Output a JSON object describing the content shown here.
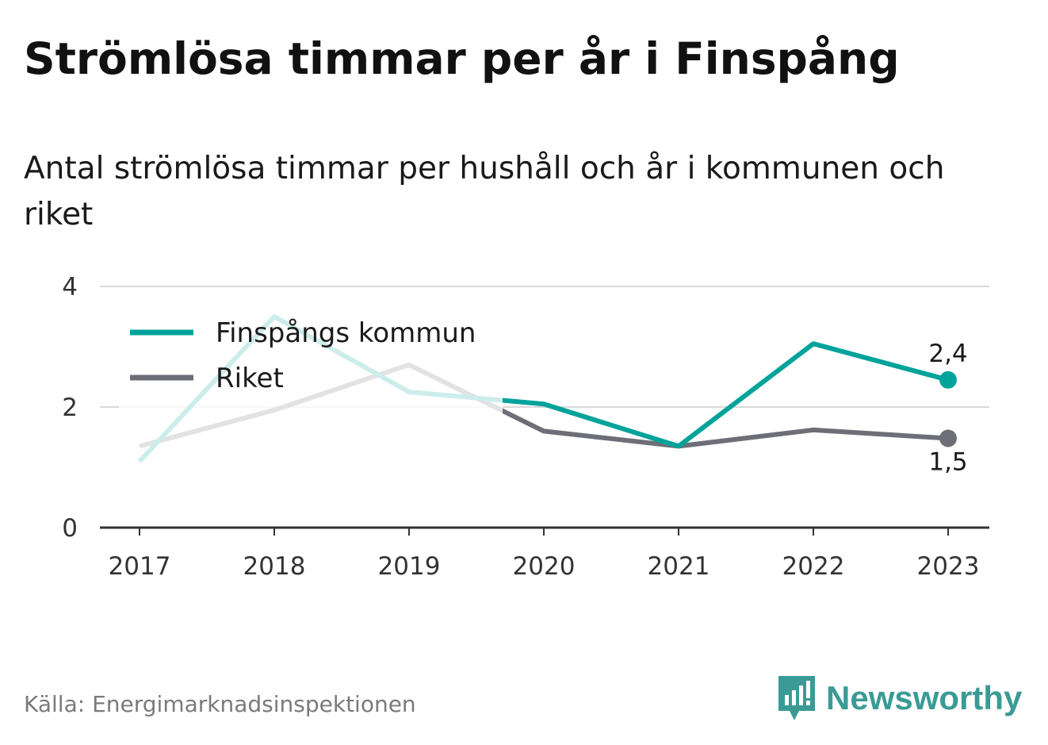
{
  "title": "Strömlösa timmar per år i Finspång",
  "subtitle": "Antal strömlösa timmar per hushåll och år i kommunen och riket",
  "source": "Källa: Energimarknadsinspektionen",
  "brand": {
    "name": "Newsworthy",
    "icon": "newsworthy-logo-icon"
  },
  "colors": {
    "finspang": "#00a39a",
    "riket": "#6e6e78",
    "grid": "#d9d9d9",
    "axis": "#333333"
  },
  "chart_data": {
    "type": "line",
    "x": [
      "2017",
      "2018",
      "2019",
      "2020",
      "2021",
      "2022",
      "2023"
    ],
    "series": [
      {
        "name": "Finspångs kommun",
        "values": [
          1.1,
          3.5,
          2.25,
          2.05,
          1.35,
          3.05,
          2.45
        ],
        "end_label": "2,4"
      },
      {
        "name": "Riket",
        "values": [
          1.35,
          1.95,
          2.7,
          1.6,
          1.35,
          1.62,
          1.48
        ],
        "end_label": "1,5"
      }
    ],
    "ylim": [
      0,
      4
    ],
    "yticks": [
      "0",
      "2",
      "4"
    ],
    "grid": true,
    "legend": "top-left"
  }
}
